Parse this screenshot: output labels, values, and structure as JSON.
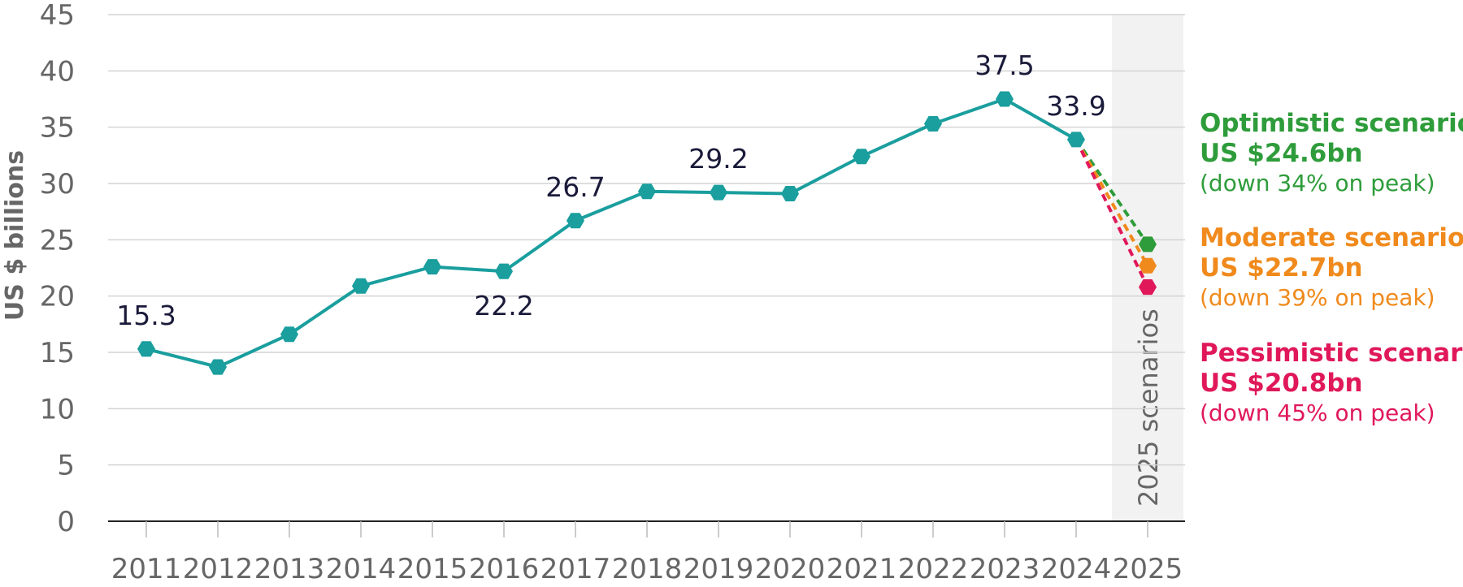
{
  "chart_data": {
    "type": "line",
    "title": "",
    "xlabel": "",
    "ylabel": "US $ billions",
    "ylim": [
      0,
      45
    ],
    "yticks": [
      0,
      5,
      10,
      15,
      20,
      25,
      30,
      35,
      40,
      45
    ],
    "grid": true,
    "categories": [
      "2011",
      "2012",
      "2013",
      "2014",
      "2015",
      "2016",
      "2017",
      "2018",
      "2019",
      "2020",
      "2021",
      "2022",
      "2023",
      "2024",
      "2025"
    ],
    "series": [
      {
        "values": [
          15.3,
          13.7,
          16.6,
          20.9,
          22.6,
          22.2,
          26.7,
          29.3,
          29.2,
          29.1,
          32.4,
          35.3,
          37.5,
          33.9,
          null
        ],
        "color": "#1a9e9e"
      }
    ],
    "data_labels": [
      {
        "category": "2011",
        "value": 15.3,
        "text": "15.3",
        "position": "above"
      },
      {
        "category": "2016",
        "value": 22.2,
        "text": "22.2",
        "position": "below"
      },
      {
        "category": "2017",
        "value": 26.7,
        "text": "26.7",
        "position": "above"
      },
      {
        "category": "2019",
        "value": 29.2,
        "text": "29.2",
        "position": "above"
      },
      {
        "category": "2023",
        "value": 37.5,
        "text": "37.5",
        "position": "above"
      },
      {
        "category": "2024",
        "value": 33.9,
        "text": "33.9",
        "position": "above"
      }
    ],
    "scenario_band": {
      "category": "2025",
      "label": "2025 scenarios",
      "color": "#f2f2f2"
    },
    "scenarios": [
      {
        "name": "Optimistic scenario:",
        "amount": "US $24.6bn",
        "note": "(down 34% on peak)",
        "value": 24.6,
        "color": "#2e9c3a"
      },
      {
        "name": "Moderate scenario:",
        "amount": "US $22.7bn",
        "note": "(down 39% on peak)",
        "value": 22.7,
        "color": "#f08a1c"
      },
      {
        "name": "Pessimistic scenario:",
        "amount": "US $20.8bn",
        "note": "(down 45% on peak)",
        "value": 20.8,
        "color": "#e0185a"
      }
    ]
  }
}
